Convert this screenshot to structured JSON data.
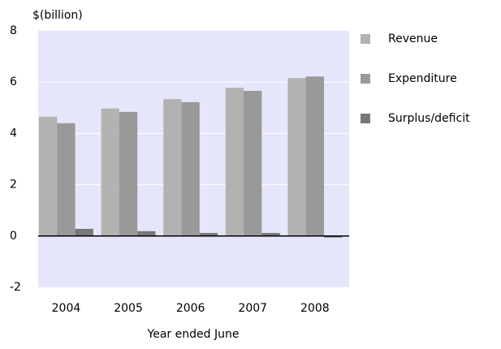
{
  "chart_data": {
    "type": "bar",
    "y_label": "$(billion)",
    "x_label": "Year ended June",
    "categories": [
      "2004",
      "2005",
      "2006",
      "2007",
      "2008"
    ],
    "series": [
      {
        "name": "Revenue",
        "color": "#b2b2b2",
        "values": [
          4.65,
          4.97,
          5.34,
          5.78,
          6.16
        ]
      },
      {
        "name": "Expenditure",
        "color": "#999999",
        "values": [
          4.4,
          4.84,
          5.22,
          5.66,
          6.22
        ]
      },
      {
        "name": "Surplus/deficit",
        "color": "#787878",
        "values": [
          0.28,
          0.19,
          0.12,
          0.12,
          -0.06
        ]
      }
    ],
    "ylim": [
      -2,
      8
    ],
    "yticks": [
      -2,
      0,
      2,
      4,
      6,
      8
    ],
    "grid": true,
    "legend": "right"
  }
}
